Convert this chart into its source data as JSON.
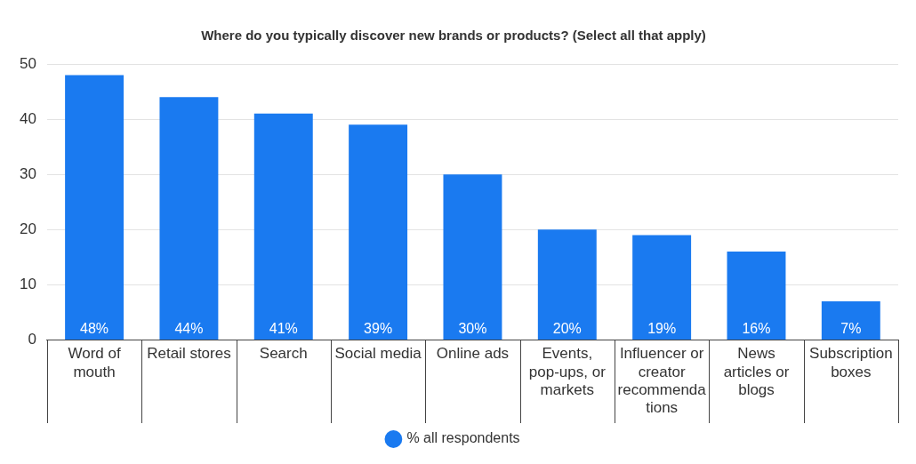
{
  "chart_data": {
    "type": "bar",
    "title": "Where do you typically discover new brands or products? (Select all that apply)",
    "categories": [
      "Word of mouth",
      "Retail stores",
      "Search",
      "Social media",
      "Online ads",
      "Events, pop-ups, or markets",
      "Influencer or creator recommendations",
      "News articles or blogs",
      "Subscription boxes"
    ],
    "series": [
      {
        "name": "% all respondents",
        "color": "#1a7af0",
        "values": [
          48,
          44,
          41,
          39,
          30,
          20,
          19,
          16,
          7
        ],
        "value_labels": [
          "48%",
          "44%",
          "41%",
          "39%",
          "30%",
          "20%",
          "19%",
          "16%",
          "7%"
        ]
      }
    ],
    "ylim": [
      0,
      50
    ],
    "yticks": [
      0,
      10,
      20,
      30,
      40,
      50
    ],
    "grid": "y",
    "legend": "bottom"
  }
}
